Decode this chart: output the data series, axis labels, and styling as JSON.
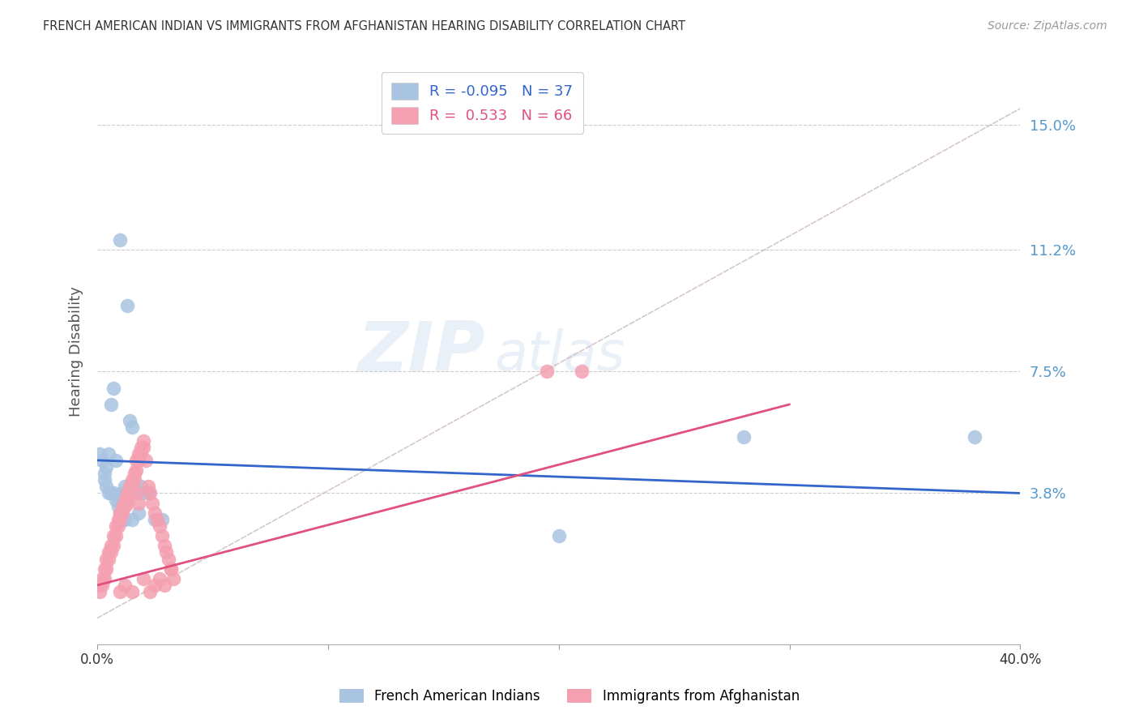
{
  "title": "FRENCH AMERICAN INDIAN VS IMMIGRANTS FROM AFGHANISTAN HEARING DISABILITY CORRELATION CHART",
  "source": "Source: ZipAtlas.com",
  "ylabel": "Hearing Disability",
  "ytick_labels": [
    "15.0%",
    "11.2%",
    "7.5%",
    "3.8%"
  ],
  "ytick_values": [
    0.15,
    0.112,
    0.075,
    0.038
  ],
  "xlim": [
    0.0,
    0.4
  ],
  "ylim": [
    -0.008,
    0.17
  ],
  "legend_blue_r": "-0.095",
  "legend_blue_n": "37",
  "legend_pink_r": "0.533",
  "legend_pink_n": "66",
  "blue_color": "#a8c4e0",
  "pink_color": "#f4a0b0",
  "blue_line_color": "#3366cc",
  "pink_line_color": "#e05080",
  "watermark_zip": "ZIP",
  "watermark_atlas": "atlas",
  "blue_scatter_x": [
    0.001,
    0.002,
    0.003,
    0.003,
    0.004,
    0.004,
    0.005,
    0.005,
    0.006,
    0.006,
    0.007,
    0.007,
    0.008,
    0.008,
    0.009,
    0.009,
    0.01,
    0.01,
    0.011,
    0.011,
    0.012,
    0.012,
    0.013,
    0.014,
    0.015,
    0.015,
    0.016,
    0.017,
    0.018,
    0.019,
    0.02,
    0.022,
    0.025,
    0.028,
    0.28,
    0.38,
    0.2
  ],
  "blue_scatter_y": [
    0.05,
    0.048,
    0.044,
    0.042,
    0.046,
    0.04,
    0.05,
    0.038,
    0.065,
    0.038,
    0.07,
    0.038,
    0.048,
    0.036,
    0.036,
    0.034,
    0.115,
    0.032,
    0.038,
    0.03,
    0.04,
    0.03,
    0.095,
    0.06,
    0.058,
    0.03,
    0.04,
    0.038,
    0.032,
    0.04,
    0.038,
    0.038,
    0.03,
    0.03,
    0.055,
    0.055,
    0.025
  ],
  "pink_scatter_x": [
    0.001,
    0.001,
    0.002,
    0.002,
    0.003,
    0.003,
    0.004,
    0.004,
    0.005,
    0.005,
    0.006,
    0.006,
    0.007,
    0.007,
    0.008,
    0.008,
    0.009,
    0.009,
    0.01,
    0.01,
    0.011,
    0.011,
    0.012,
    0.012,
    0.013,
    0.013,
    0.014,
    0.014,
    0.015,
    0.015,
    0.016,
    0.016,
    0.017,
    0.017,
    0.018,
    0.018,
    0.019,
    0.019,
    0.02,
    0.02,
    0.021,
    0.022,
    0.023,
    0.024,
    0.025,
    0.026,
    0.027,
    0.028,
    0.029,
    0.03,
    0.031,
    0.032,
    0.033,
    0.017,
    0.018,
    0.195,
    0.21,
    0.025,
    0.027,
    0.029,
    0.023,
    0.02,
    0.015,
    0.032,
    0.01,
    0.012
  ],
  "pink_scatter_y": [
    0.01,
    0.008,
    0.012,
    0.01,
    0.015,
    0.012,
    0.018,
    0.015,
    0.02,
    0.018,
    0.022,
    0.02,
    0.025,
    0.022,
    0.028,
    0.025,
    0.03,
    0.028,
    0.032,
    0.03,
    0.034,
    0.032,
    0.036,
    0.034,
    0.038,
    0.035,
    0.04,
    0.038,
    0.042,
    0.04,
    0.044,
    0.042,
    0.048,
    0.045,
    0.05,
    0.048,
    0.052,
    0.05,
    0.054,
    0.052,
    0.048,
    0.04,
    0.038,
    0.035,
    0.032,
    0.03,
    0.028,
    0.025,
    0.022,
    0.02,
    0.018,
    0.015,
    0.012,
    0.038,
    0.035,
    0.075,
    0.075,
    0.01,
    0.012,
    0.01,
    0.008,
    0.012,
    0.008,
    0.015,
    0.008,
    0.01
  ],
  "blue_line_x": [
    0.0,
    0.4
  ],
  "blue_line_y": [
    0.048,
    0.038
  ],
  "pink_line_x": [
    0.0,
    0.3
  ],
  "pink_line_y": [
    0.01,
    0.065
  ],
  "diag_line_x": [
    0.0,
    0.4
  ],
  "diag_line_y": [
    0.0,
    0.155
  ]
}
